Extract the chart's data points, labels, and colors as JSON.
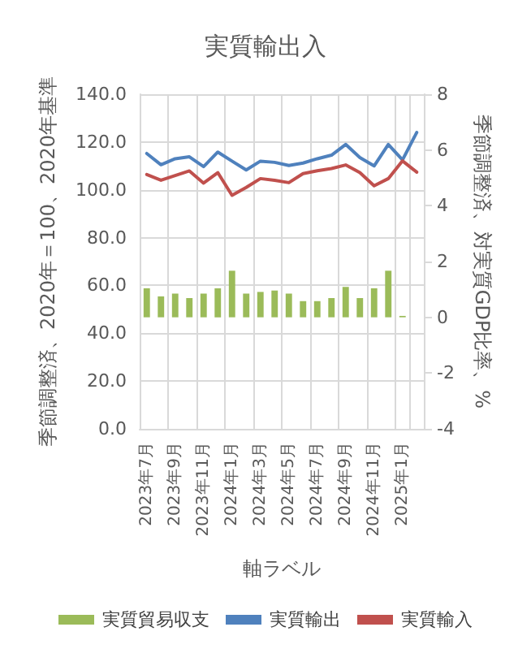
{
  "chart_data": {
    "type": "bar",
    "title": "実質輸出入",
    "xlabel": "軸ラベル",
    "ylabel": "季節調整済、2020年＝100、2020年基準",
    "y2label": "季節調整済、対実質GDP比率、%",
    "categories": [
      "2023年7月",
      null,
      "2023年9月",
      null,
      "2023年11月",
      null,
      "2024年1月",
      null,
      "2024年3月",
      null,
      "2024年5月",
      null,
      "2024年7月",
      null,
      "2024年9月",
      null,
      "2024年11月",
      null,
      "2025年1月",
      null
    ],
    "series": [
      {
        "name": "実質貿易収支",
        "axis": "y2",
        "color": "#9bbb59",
        "values": [
          1.04,
          0.75,
          0.85,
          0.69,
          0.85,
          1.04,
          1.67,
          0.85,
          0.91,
          0.96,
          0.85,
          0.58,
          0.58,
          0.69,
          1.09,
          0.69,
          1.04,
          1.67,
          0.05,
          null
        ]
      },
      {
        "name": "実質輸出",
        "type": "line",
        "color": "#4f81bd",
        "values": [
          115.2,
          110.5,
          113,
          113.8,
          109.7,
          115.8,
          112,
          108.3,
          112,
          111.5,
          110.2,
          111.2,
          113,
          114.5,
          119,
          113.5,
          110,
          119,
          112.5,
          124
        ]
      },
      {
        "name": "実質輸入",
        "type": "line",
        "color": "#c0504d",
        "values": [
          106.4,
          104,
          106,
          107.9,
          102.8,
          107.2,
          97.7,
          101,
          104.7,
          104,
          103,
          106.8,
          108,
          108.9,
          110.4,
          107.2,
          101.7,
          104.7,
          112.1,
          107.4
        ]
      }
    ],
    "ylim": [
      0,
      140
    ],
    "yticks": [
      {
        "value": 0,
        "label": "0.0"
      },
      {
        "value": 20,
        "label": "20.0"
      },
      {
        "value": 40,
        "label": "40.0"
      },
      {
        "value": 60,
        "label": "60.0"
      },
      {
        "value": 80,
        "label": "80.0"
      },
      {
        "value": 100,
        "label": "100.0"
      },
      {
        "value": 120,
        "label": "120.0"
      },
      {
        "value": 140,
        "label": "140.0"
      }
    ],
    "y2lim": [
      -4,
      8
    ],
    "y2ticks": [
      -4,
      -2,
      0,
      2,
      4,
      6,
      8
    ],
    "grid": true,
    "legend": "bottom",
    "marker": "none",
    "line_style": "solid"
  }
}
